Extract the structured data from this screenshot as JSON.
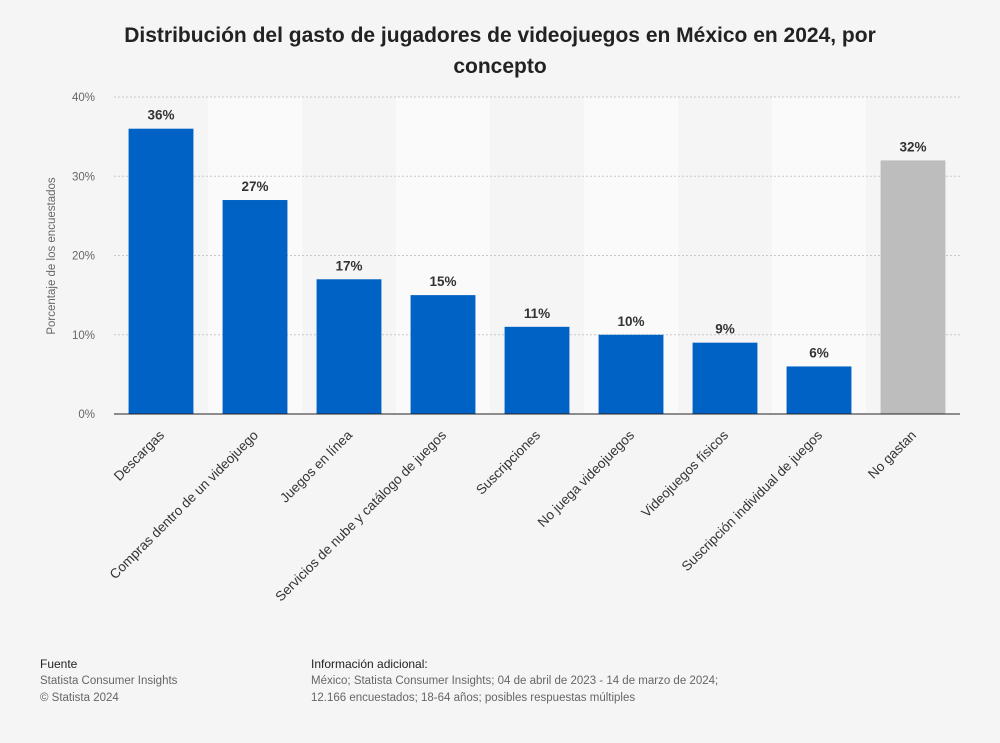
{
  "chart_data": {
    "type": "bar",
    "title": "Distribución del gasto de jugadores de videojuegos en México en 2024, por concepto",
    "ylabel": "Porcentaje de los encuestados",
    "xlabel": "",
    "ylim": [
      0,
      40
    ],
    "yticks": [
      "0%",
      "10%",
      "20%",
      "30%",
      "40%"
    ],
    "ytick_values": [
      0,
      10,
      20,
      30,
      40
    ],
    "grid": true,
    "categories": [
      "Descargas",
      "Compras dentro de un videojuego",
      "Juegos en línea",
      "Servicios de nube y catálogo de juegos",
      "Suscripciones",
      "No juega videojuegos",
      "Videojuegos físicos",
      "Suscripción individual de juegos",
      "No gastan"
    ],
    "values": [
      36,
      27,
      17,
      15,
      11,
      10,
      9,
      6,
      32
    ],
    "data_labels": [
      "36%",
      "27%",
      "17%",
      "15%",
      "11%",
      "10%",
      "9%",
      "6%",
      "32%"
    ],
    "colors": [
      "#0062c4",
      "#0062c4",
      "#0062c4",
      "#0062c4",
      "#0062c4",
      "#0062c4",
      "#0062c4",
      "#0062c4",
      "#bdbdbd"
    ]
  },
  "footer": {
    "source_heading": "Fuente",
    "source_lines": [
      "Statista Consumer Insights",
      "© Statista 2024"
    ],
    "info_heading": "Información adicional:",
    "info_text": "México; Statista Consumer Insights; 04 de abril de 2023 - 14 de marzo de 2024; 12.166 encuestados; 18-64 años; posibles respuestas múltiples"
  }
}
